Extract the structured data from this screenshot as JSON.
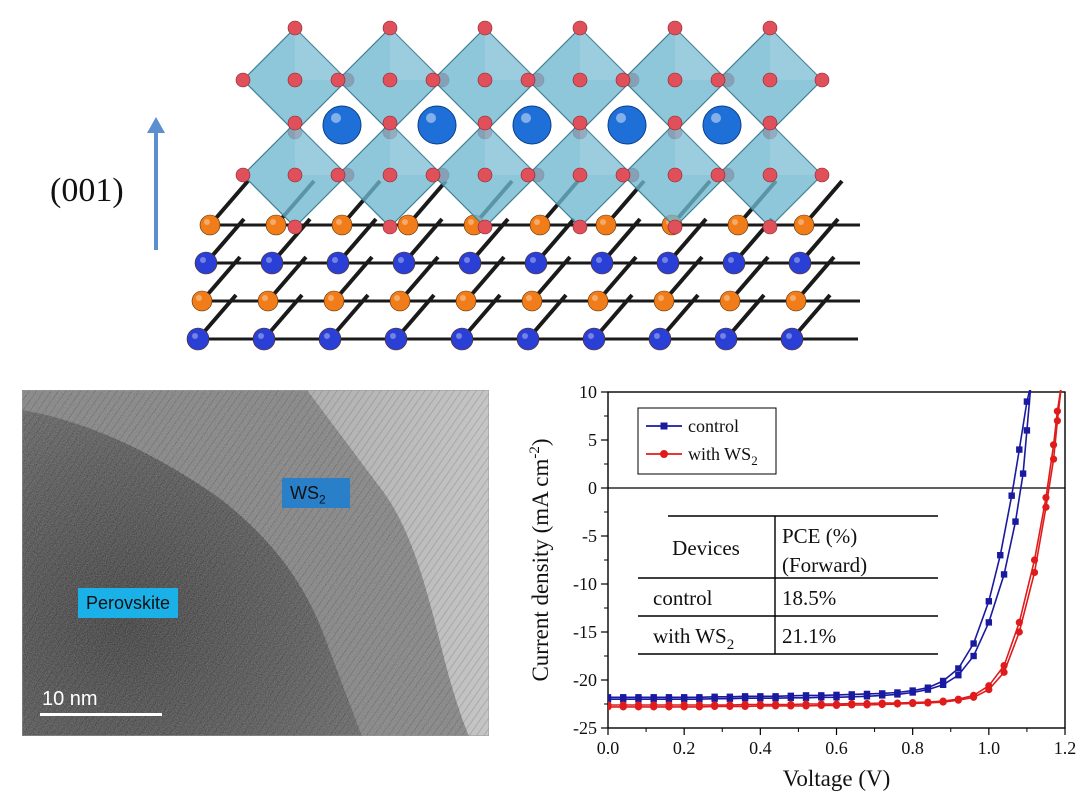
{
  "figure": {
    "orientation_label": "(001)",
    "tem": {
      "ws2_tag": "WS",
      "ws2_sub": "2",
      "perovskite_tag": "Perovskite",
      "scale_label": "10 nm"
    }
  },
  "colors": {
    "control": "#1a1aa0",
    "with_ws2": "#e01b1b",
    "octahedra": "#6fb7cf",
    "oxygen": "#e0505a",
    "cation": "#1f6fd8",
    "s_atom": "#f07d1a",
    "w_atom": "#2a3fd6",
    "arrow": "#5b8fd0"
  },
  "chart_data": {
    "type": "line",
    "xlabel": "Voltage (V)",
    "ylabel": "Current density (mA cm",
    "ylabel_sup": "-2",
    "ylabel_end": ")",
    "xlim": [
      0.0,
      1.2
    ],
    "ylim": [
      -25,
      10
    ],
    "xticks": [
      "0.0",
      "0.2",
      "0.4",
      "0.6",
      "0.8",
      "1.0",
      "1.2"
    ],
    "yticks": [
      "10",
      "5",
      "0",
      "-5",
      "-10",
      "-15",
      "-20",
      "-25"
    ],
    "legend": {
      "placement": "top-left"
    },
    "series": [
      {
        "name": "control",
        "marker": "square",
        "curves": [
          {
            "x": [
              0,
              0.04,
              0.08,
              0.12,
              0.16,
              0.2,
              0.24,
              0.28,
              0.32,
              0.36,
              0.4,
              0.44,
              0.48,
              0.52,
              0.56,
              0.6,
              0.64,
              0.68,
              0.72,
              0.76,
              0.8,
              0.84,
              0.88,
              0.92,
              0.96,
              1.0,
              1.03,
              1.06,
              1.08,
              1.1,
              1.11
            ],
            "y": [
              -21.8,
              -21.8,
              -21.8,
              -21.8,
              -21.8,
              -21.8,
              -21.8,
              -21.75,
              -21.75,
              -21.7,
              -21.7,
              -21.7,
              -21.65,
              -21.6,
              -21.6,
              -21.55,
              -21.5,
              -21.45,
              -21.4,
              -21.3,
              -21.1,
              -20.8,
              -20.1,
              -18.8,
              -16.2,
              -11.8,
              -7.0,
              -0.8,
              4.0,
              9.0,
              11.0
            ]
          },
          {
            "x": [
              0,
              0.04,
              0.08,
              0.12,
              0.16,
              0.2,
              0.24,
              0.28,
              0.32,
              0.36,
              0.4,
              0.44,
              0.48,
              0.52,
              0.56,
              0.6,
              0.64,
              0.68,
              0.72,
              0.76,
              0.8,
              0.84,
              0.88,
              0.92,
              0.96,
              1.0,
              1.04,
              1.07,
              1.09,
              1.1,
              1.11
            ],
            "y": [
              -22.0,
              -22.0,
              -22.0,
              -22.0,
              -22.0,
              -22.0,
              -22.0,
              -21.95,
              -21.95,
              -21.9,
              -21.9,
              -21.9,
              -21.85,
              -21.85,
              -21.8,
              -21.8,
              -21.75,
              -21.7,
              -21.6,
              -21.5,
              -21.3,
              -21.0,
              -20.5,
              -19.5,
              -17.5,
              -14.0,
              -9.0,
              -3.5,
              1.5,
              6.0,
              10.5
            ]
          }
        ]
      },
      {
        "name": "with WS",
        "name_sub": "2",
        "marker": "circle",
        "curves": [
          {
            "x": [
              0,
              0.04,
              0.08,
              0.12,
              0.16,
              0.2,
              0.24,
              0.28,
              0.32,
              0.36,
              0.4,
              0.44,
              0.48,
              0.52,
              0.56,
              0.6,
              0.64,
              0.68,
              0.72,
              0.76,
              0.8,
              0.84,
              0.88,
              0.92,
              0.96,
              1.0,
              1.04,
              1.08,
              1.12,
              1.15,
              1.17,
              1.18,
              1.19
            ],
            "y": [
              -22.6,
              -22.6,
              -22.6,
              -22.6,
              -22.6,
              -22.6,
              -22.6,
              -22.6,
              -22.6,
              -22.55,
              -22.55,
              -22.55,
              -22.55,
              -22.5,
              -22.5,
              -22.5,
              -22.45,
              -22.45,
              -22.4,
              -22.4,
              -22.35,
              -22.3,
              -22.2,
              -22.0,
              -21.6,
              -20.6,
              -18.5,
              -14.0,
              -7.5,
              -1.0,
              4.5,
              8.0,
              11.0
            ]
          },
          {
            "x": [
              0,
              0.04,
              0.08,
              0.12,
              0.16,
              0.2,
              0.24,
              0.28,
              0.32,
              0.36,
              0.4,
              0.44,
              0.48,
              0.52,
              0.56,
              0.6,
              0.64,
              0.68,
              0.72,
              0.76,
              0.8,
              0.84,
              0.88,
              0.92,
              0.96,
              1.0,
              1.04,
              1.08,
              1.12,
              1.15,
              1.17,
              1.18,
              1.19
            ],
            "y": [
              -22.8,
              -22.8,
              -22.8,
              -22.8,
              -22.8,
              -22.8,
              -22.8,
              -22.75,
              -22.75,
              -22.75,
              -22.7,
              -22.7,
              -22.7,
              -22.7,
              -22.65,
              -22.65,
              -22.6,
              -22.6,
              -22.55,
              -22.5,
              -22.45,
              -22.4,
              -22.3,
              -22.1,
              -21.8,
              -21.0,
              -19.2,
              -15.0,
              -8.8,
              -2.0,
              3.0,
              7.0,
              10.5
            ]
          }
        ]
      }
    ],
    "table": {
      "header_devices": "Devices",
      "header_pce_1": "PCE (%)",
      "header_pce_2": "(Forward)",
      "rows": [
        {
          "device": "control",
          "device_sub": "",
          "pce": "18.5%"
        },
        {
          "device": "with WS",
          "device_sub": "2",
          "pce": "21.1%"
        }
      ]
    }
  }
}
